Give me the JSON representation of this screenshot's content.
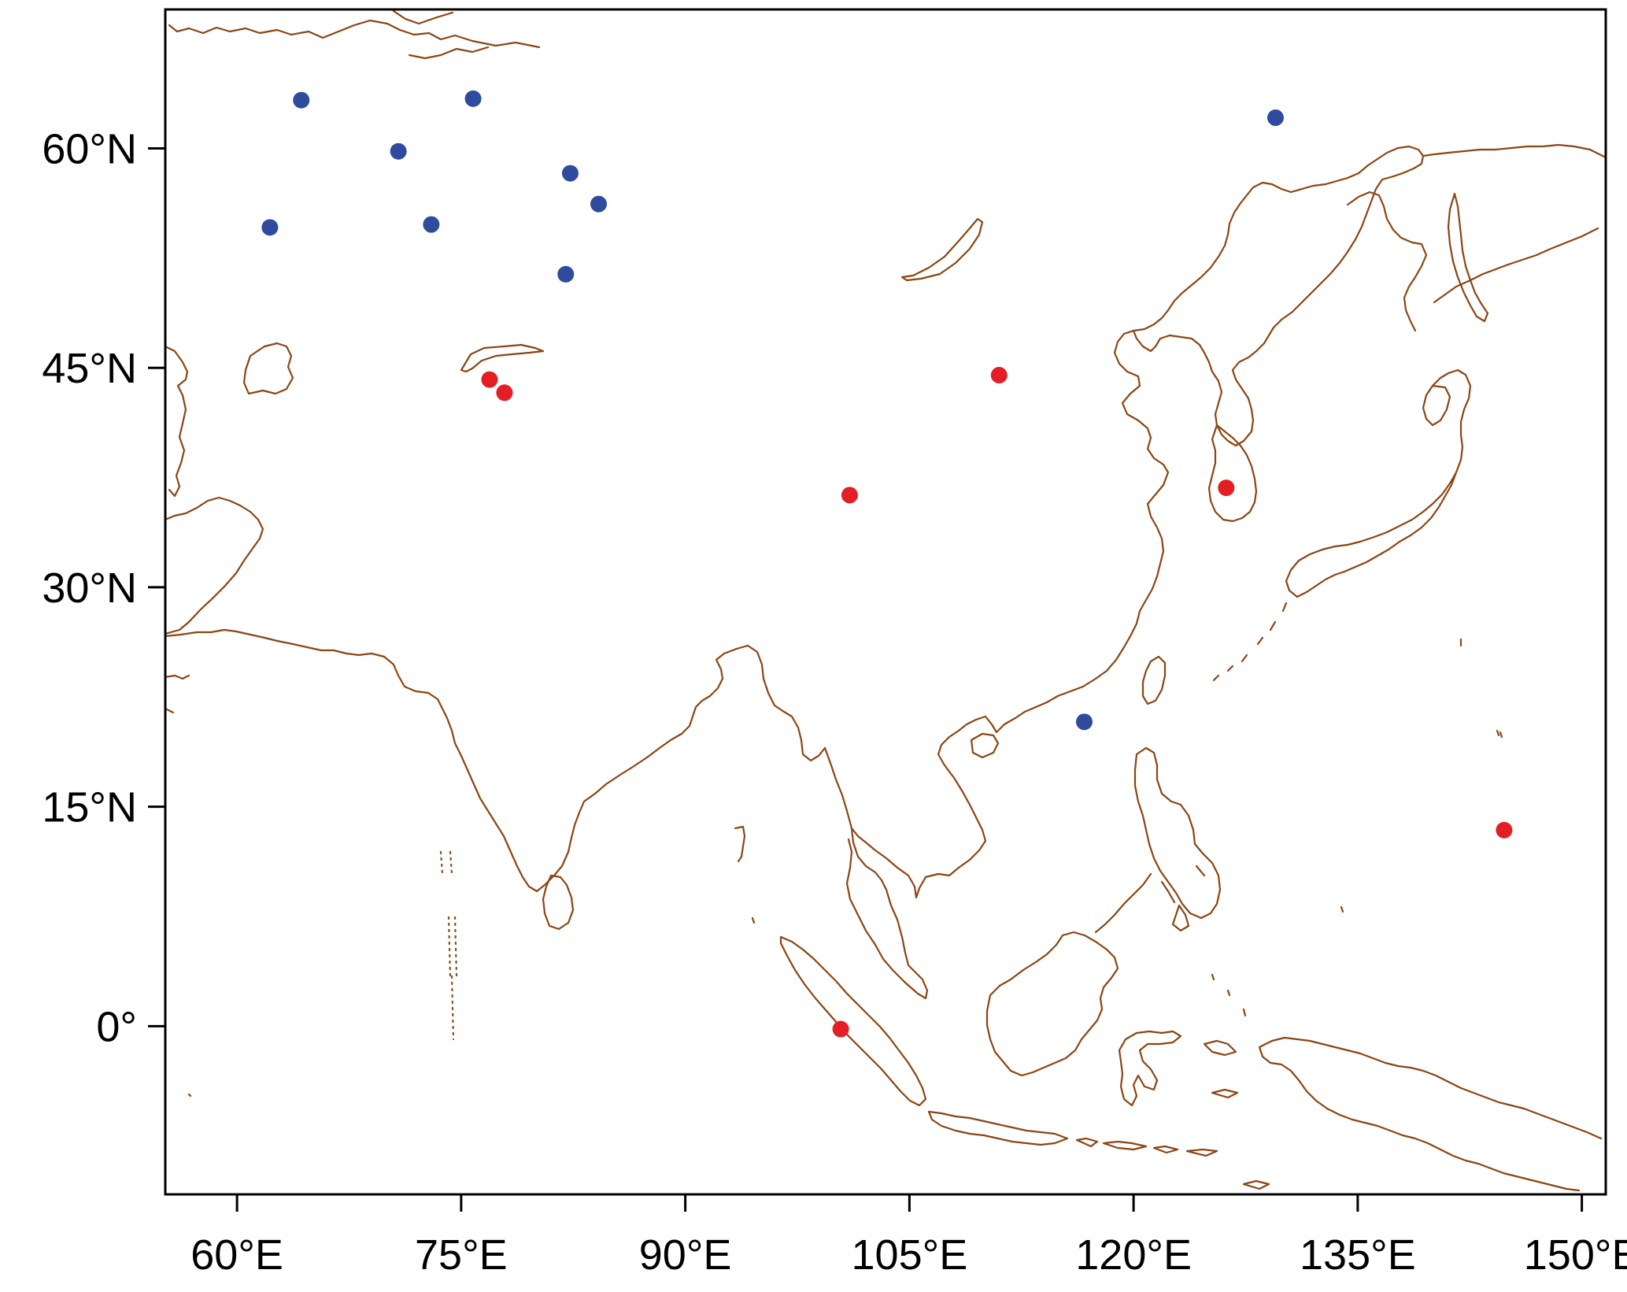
{
  "map": {
    "projection": "equirectangular",
    "lon_range": [
      55.2,
      151.6
    ],
    "lat_range": [
      -11.5,
      69.5
    ],
    "x_ticks": [
      {
        "lon": 60,
        "label": "60°E"
      },
      {
        "lon": 75,
        "label": "75°E"
      },
      {
        "lon": 90,
        "label": "90°E"
      },
      {
        "lon": 105,
        "label": "105°E"
      },
      {
        "lon": 120,
        "label": "120°E"
      },
      {
        "lon": 135,
        "label": "135°E"
      },
      {
        "lon": 150,
        "label": "150°E"
      }
    ],
    "y_ticks": [
      {
        "lat": 60,
        "label": "60°N"
      },
      {
        "lat": 45,
        "label": "45°N"
      },
      {
        "lat": 30,
        "label": "30°N"
      },
      {
        "lat": 15,
        "label": "15°N"
      },
      {
        "lat": 0,
        "label": "0°"
      }
    ],
    "colors": {
      "coastline": "#8B4513",
      "frame": "#000000",
      "blue_points": "#2E4B9E",
      "red_points": "#E31E24"
    },
    "points": [
      {
        "lon": 64.3,
        "lat": 63.3,
        "group": "blue"
      },
      {
        "lon": 75.8,
        "lat": 63.4,
        "group": "blue"
      },
      {
        "lon": 70.8,
        "lat": 59.8,
        "group": "blue"
      },
      {
        "lon": 82.3,
        "lat": 58.3,
        "group": "blue"
      },
      {
        "lon": 84.2,
        "lat": 56.2,
        "group": "blue"
      },
      {
        "lon": 62.2,
        "lat": 54.6,
        "group": "blue"
      },
      {
        "lon": 73.0,
        "lat": 54.8,
        "group": "blue"
      },
      {
        "lon": 82.0,
        "lat": 51.4,
        "group": "blue"
      },
      {
        "lon": 129.5,
        "lat": 62.1,
        "group": "blue"
      },
      {
        "lon": 116.7,
        "lat": 20.8,
        "group": "blue"
      },
      {
        "lon": 76.9,
        "lat": 44.2,
        "group": "red"
      },
      {
        "lon": 77.9,
        "lat": 43.3,
        "group": "red"
      },
      {
        "lon": 111.0,
        "lat": 44.5,
        "group": "red"
      },
      {
        "lon": 101.0,
        "lat": 36.3,
        "group": "red"
      },
      {
        "lon": 126.2,
        "lat": 36.8,
        "group": "red"
      },
      {
        "lon": 144.8,
        "lat": 13.4,
        "group": "red"
      },
      {
        "lon": 100.4,
        "lat": -0.2,
        "group": "red"
      }
    ]
  }
}
